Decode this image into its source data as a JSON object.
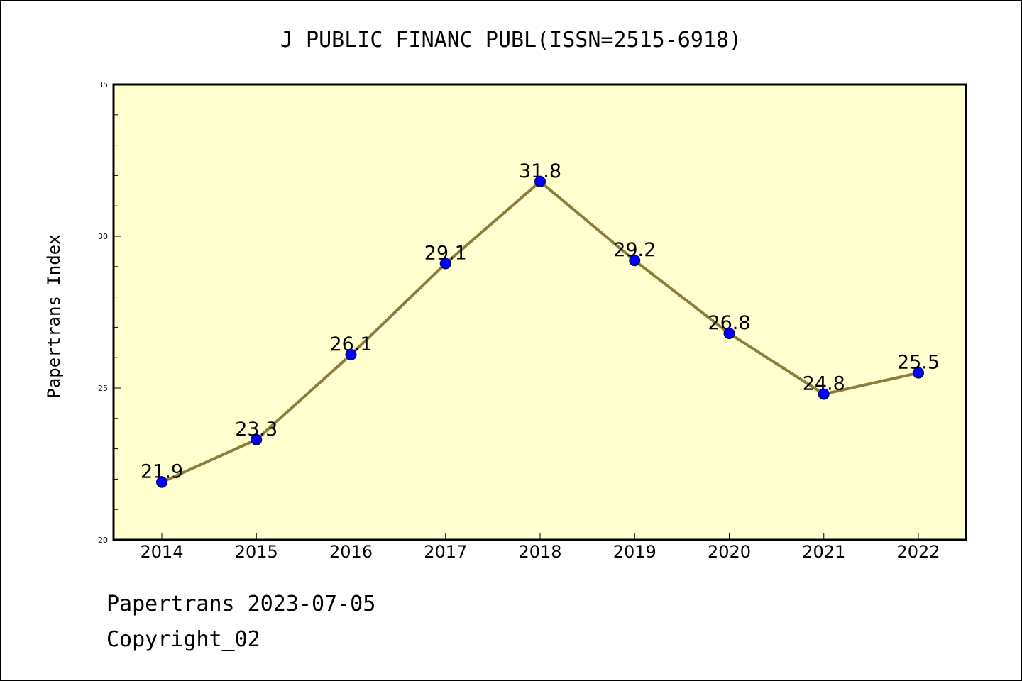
{
  "chart_data": {
    "type": "line",
    "title": "J PUBLIC FINANC PUBL(ISSN=2515-6918)",
    "xlabel": "",
    "ylabel": "Papertrans Index",
    "categories": [
      "2014",
      "2015",
      "2016",
      "2017",
      "2018",
      "2019",
      "2020",
      "2021",
      "2022"
    ],
    "series": [
      {
        "values": [
          21.9,
          23.3,
          26.1,
          29.1,
          31.8,
          29.2,
          26.8,
          24.8,
          25.5
        ]
      }
    ],
    "data_labels": [
      "21.9",
      "23.3",
      "26.1",
      "29.1",
      "31.8",
      "29.2",
      "26.8",
      "24.8",
      "25.5"
    ],
    "ylim": [
      20,
      35
    ],
    "yticks": [
      "20",
      "25",
      "30",
      "35"
    ],
    "grid": false,
    "legend": "none",
    "colors": {
      "plot_background": "#FFFFD0",
      "line": "#8B7D3A",
      "marker": "#0000FF"
    }
  },
  "footer": {
    "line1": "Papertrans 2023-07-05",
    "line2": "Copyright_02"
  }
}
